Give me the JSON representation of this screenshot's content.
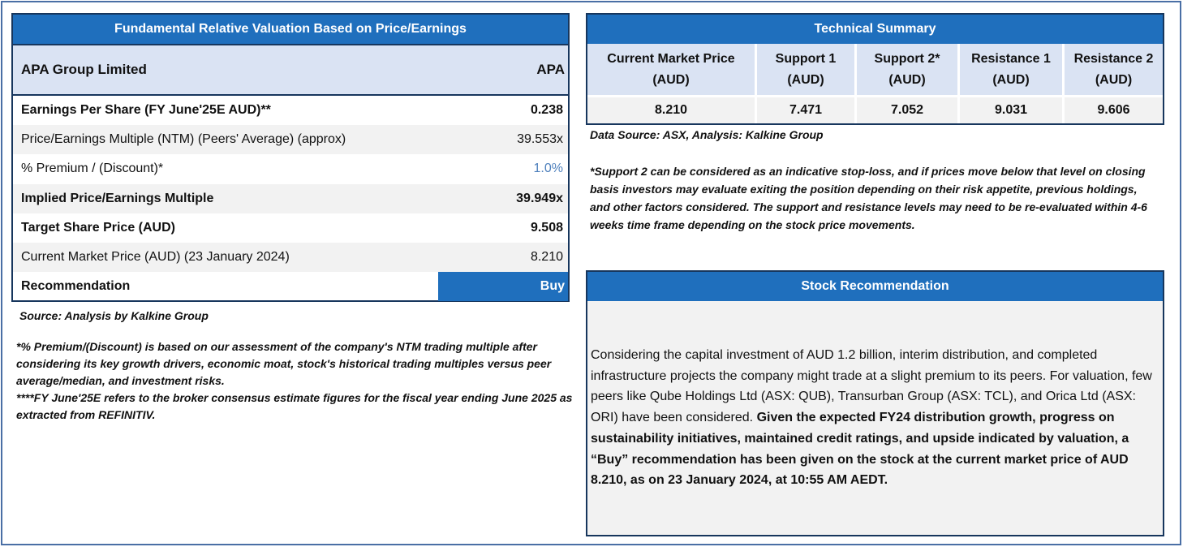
{
  "valuation": {
    "title": "Fundamental Relative Valuation Based on Price/Earnings",
    "company": "APA Group Limited",
    "ticker": "APA",
    "rows": [
      {
        "label": "Earnings Per Share (FY June'25E AUD)**",
        "value": "0.238"
      },
      {
        "label": "Price/Earnings Multiple (NTM) (Peers' Average) (approx)",
        "value": "39.553x"
      },
      {
        "label": "% Premium / (Discount)*",
        "value": "1.0%"
      },
      {
        "label": "Implied Price/Earnings Multiple",
        "value": "39.949x"
      },
      {
        "label": "Target Share Price (AUD)",
        "value": "9.508"
      },
      {
        "label": "Current Market Price (AUD) (23 January 2024)",
        "value": "8.210"
      },
      {
        "label": "Recommendation",
        "value": "Buy"
      }
    ],
    "source": "Source: Analysis by Kalkine Group",
    "note1": "*% Premium/(Discount) is based on our assessment of the company's NTM trading multiple after considering its key growth drivers, economic moat, stock's historical trading multiples versus peer average/median, and investment risks.",
    "note2": "****FY June'25E refers to the broker consensus estimate figures for the fiscal year ending June 2025 as extracted from REFINITIV."
  },
  "technical": {
    "title": "Technical Summary",
    "columns": [
      {
        "label": "Current Market Price (AUD)",
        "value": "8.210"
      },
      {
        "label": "Support 1 (AUD)",
        "value": "7.471"
      },
      {
        "label": "Support 2* (AUD)",
        "value": "7.052"
      },
      {
        "label": "Resistance 1 (AUD)",
        "value": "9.031"
      },
      {
        "label": "Resistance 2 (AUD)",
        "value": "9.606"
      }
    ],
    "source": "Data Source: ASX, Analysis: Kalkine Group",
    "note": "*Support 2 can be considered as an indicative stop-loss, and if prices move below that level on closing basis investors may evaluate exiting the position depending on their risk appetite, previous holdings, and other factors considered. The support and resistance levels may need to be re-evaluated within 4-6 weeks time frame depending on the stock price movements."
  },
  "recommendation": {
    "title": "Stock Recommendation",
    "text_normal": "Considering the capital investment of AUD 1.2 billion, interim distribution, and completed infrastructure projects the company might trade at a slight premium to its peers. For valuation, few peers like Qube Holdings Ltd (ASX: QUB), Transurban Group (ASX: TCL), and Orica Ltd (ASX: ORI) have been considered.",
    "text_bold": "Given the expected FY24 distribution growth, progress on sustainability initiatives, maintained credit ratings, and upside indicated by valuation, a “Buy” recommendation has been given on the stock at the current market price of AUD 8.210,  as on 23 January 2024, at 10:55 AM AEDT."
  },
  "colors": {
    "header_blue": "#1f6fbd",
    "header_light": "#dae3f3",
    "row_shade": "#f2f2f2",
    "premium_blue": "#4f81bd"
  }
}
